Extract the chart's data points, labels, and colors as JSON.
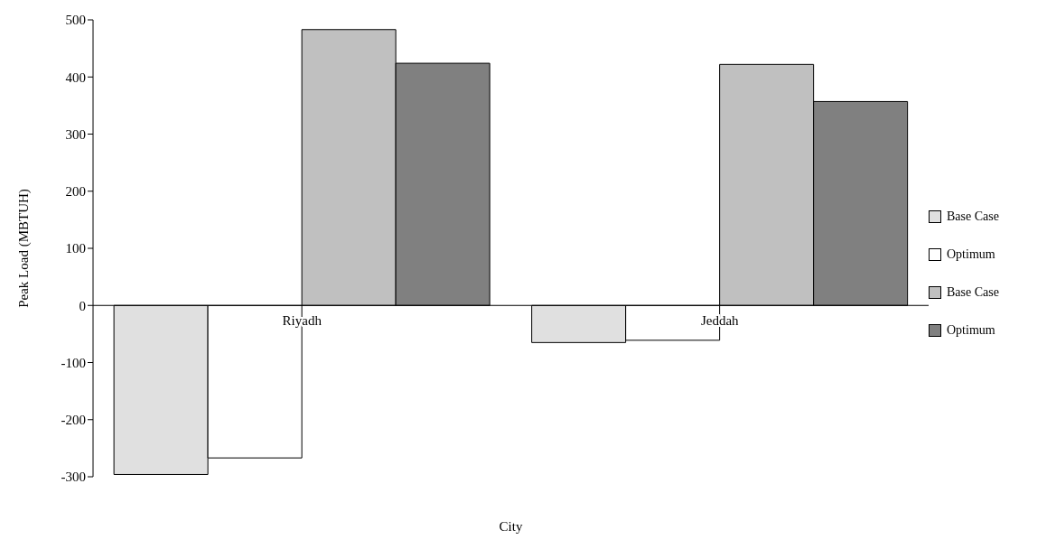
{
  "chart_data": {
    "type": "bar",
    "xlabel": "City",
    "ylabel": "Peak Load (MBTUH)",
    "categories": [
      "Riyadh",
      "Jeddah"
    ],
    "series": [
      {
        "name": "Base Case",
        "color": "#e0e0e0",
        "values": [
          -296,
          -65
        ]
      },
      {
        "name": "Optimum",
        "color": "#ffffff",
        "values": [
          -267,
          -61
        ]
      },
      {
        "name": "Base Case",
        "color": "#c0c0c0",
        "values": [
          483,
          422
        ]
      },
      {
        "name": "Optimum",
        "color": "#808080",
        "values": [
          424,
          357
        ]
      }
    ],
    "ylim": [
      -300,
      500
    ],
    "yticks": [
      -300,
      -200,
      -100,
      0,
      100,
      200,
      300,
      400,
      500
    ],
    "grid": false,
    "legend": "right"
  }
}
